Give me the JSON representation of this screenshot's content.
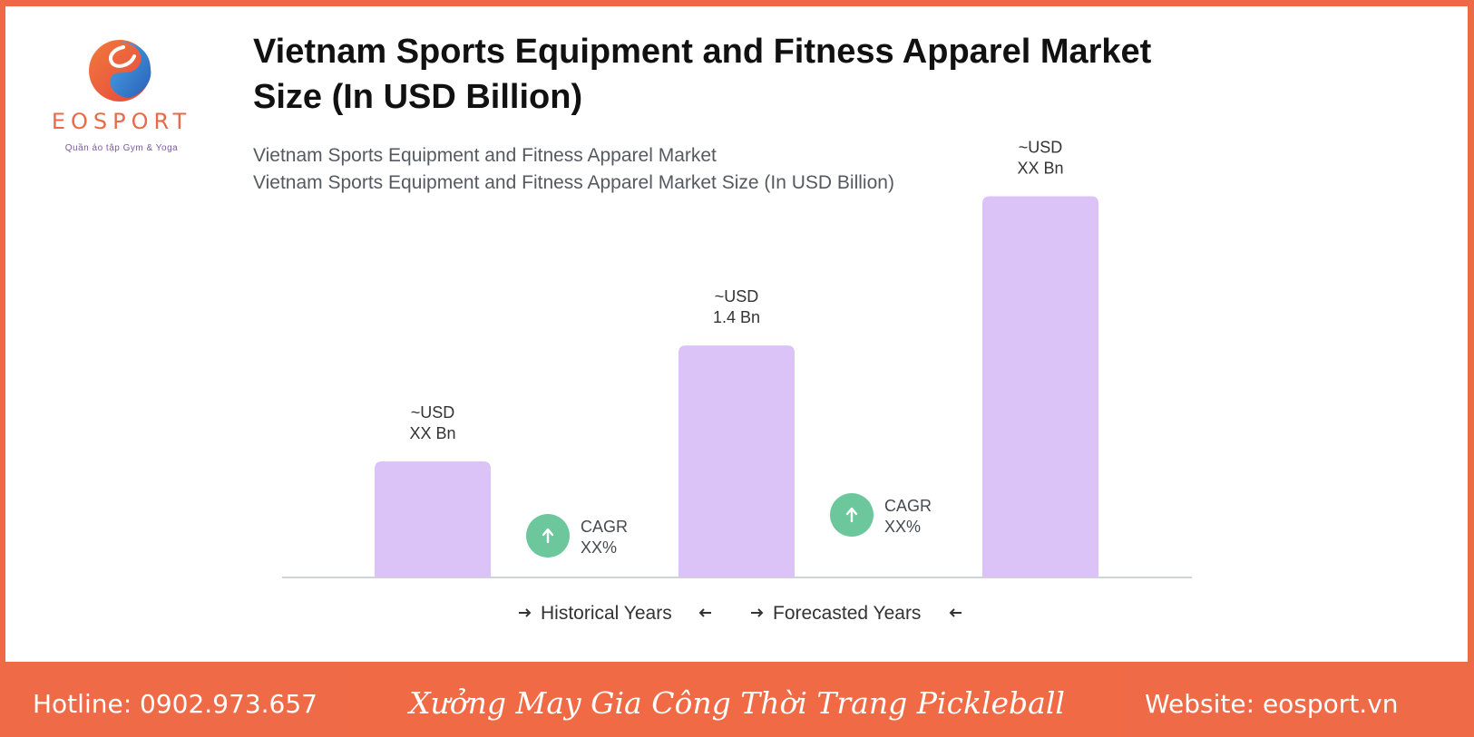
{
  "brand": {
    "name": "EOSPORT",
    "tagline": "Quần áo tập Gym & Yoga",
    "colors": {
      "accent": "#ee6a44",
      "logo_orange": "#f0643c",
      "logo_blue": "#2d7fd0"
    }
  },
  "chart_data": {
    "type": "bar",
    "title": "Vietnam Sports Equipment and Fitness Apparel Market Size (In USD Billion)",
    "subtitle_line1": "Vietnam Sports Equipment and Fitness Apparel Market",
    "subtitle_line2": "Vietnam Sports Equipment and Fitness Apparel Market Size (In USD Billion)",
    "categories": [
      "",
      "",
      ""
    ],
    "values": [
      0.7,
      1.4,
      2.3
    ],
    "bar_labels": [
      {
        "line1": "~USD",
        "line2": "XX Bn"
      },
      {
        "line1": "~USD",
        "line2": "1.4 Bn"
      },
      {
        "line1": "~USD",
        "line2": "XX Bn"
      }
    ],
    "ylim": [
      0,
      2.5
    ],
    "bar_color": "#dcc3f7",
    "cagr": [
      {
        "label": "CAGR",
        "value": "XX%",
        "icon": "arrow-up-icon"
      },
      {
        "label": "CAGR",
        "value": "XX%",
        "icon": "arrow-up-icon"
      }
    ],
    "cagr_color": "#6cc79c",
    "legend": [
      {
        "label": "Historical Years"
      },
      {
        "label": "Forecasted Years"
      }
    ],
    "grid": false,
    "legend_placement": "bottom"
  },
  "footer": {
    "hotline": "Hotline: 0902.973.657",
    "slogan": "Xưởng May Gia Công Thời Trang Pickleball",
    "website": "Website: eosport.vn"
  }
}
